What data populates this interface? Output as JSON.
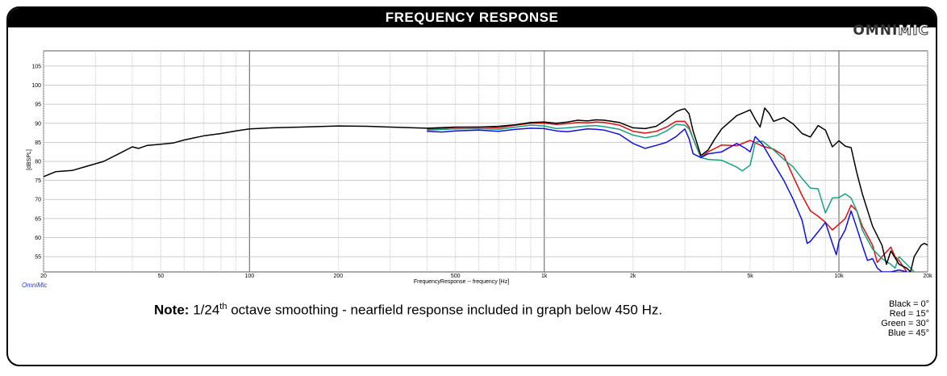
{
  "header": {
    "title": "FREQUENCY RESPONSE",
    "logo_part1": "OMNI",
    "logo_part2": "MIC"
  },
  "brand_text": "OmniMic",
  "note": {
    "bold": "Note:",
    "pre": "1/24",
    "sup": "th",
    "post": " octave smoothing - nearfield response included in graph below 450 Hz."
  },
  "legend": [
    "Black = 0°",
    "Red = 15°",
    "Green = 30°",
    "Blue = 45°"
  ],
  "chart_data": {
    "type": "line",
    "xscale": "log",
    "xlim": [
      20,
      20000
    ],
    "ylim": [
      51,
      109
    ],
    "ylabel": "[dBSPL]",
    "xlabel": "FrequencyResponse -- frequency [Hz]",
    "x_ticks": [
      {
        "v": 20,
        "label": "20"
      },
      {
        "v": 50,
        "label": "50"
      },
      {
        "v": 100,
        "label": "100"
      },
      {
        "v": 200,
        "label": "200"
      },
      {
        "v": 500,
        "label": "500"
      },
      {
        "v": 1000,
        "label": "1k"
      },
      {
        "v": 2000,
        "label": "2k"
      },
      {
        "v": 5000,
        "label": "5k"
      },
      {
        "v": 10000,
        "label": "10k"
      },
      {
        "v": 20000,
        "label": "20k"
      }
    ],
    "y_ticks": [
      55,
      60,
      65,
      70,
      75,
      80,
      85,
      90,
      95,
      100,
      105
    ],
    "grid": true,
    "series": [
      {
        "color": "#000000",
        "points": [
          [
            20,
            76
          ],
          [
            22,
            77.3
          ],
          [
            25,
            77.6
          ],
          [
            28,
            78.7
          ],
          [
            32,
            80
          ],
          [
            36,
            82
          ],
          [
            40,
            83.8
          ],
          [
            42,
            83.4
          ],
          [
            45,
            84.2
          ],
          [
            50,
            84.5
          ],
          [
            55,
            84.8
          ],
          [
            60,
            85.6
          ],
          [
            70,
            86.7
          ],
          [
            80,
            87.3
          ],
          [
            90,
            88
          ],
          [
            100,
            88.5
          ],
          [
            120,
            88.8
          ],
          [
            150,
            89
          ],
          [
            200,
            89.3
          ],
          [
            250,
            89.2
          ],
          [
            300,
            89
          ],
          [
            400,
            88.7
          ],
          [
            500,
            89
          ],
          [
            600,
            89
          ],
          [
            700,
            89.2
          ],
          [
            800,
            89.6
          ],
          [
            900,
            90.2
          ],
          [
            1000,
            90.3
          ],
          [
            1100,
            90
          ],
          [
            1200,
            90.3
          ],
          [
            1300,
            90.8
          ],
          [
            1400,
            90.6
          ],
          [
            1500,
            90.9
          ],
          [
            1600,
            90.8
          ],
          [
            1800,
            90.2
          ],
          [
            2000,
            88.8
          ],
          [
            2200,
            88.6
          ],
          [
            2400,
            89.2
          ],
          [
            2600,
            91
          ],
          [
            2800,
            93
          ],
          [
            2900,
            93.5
          ],
          [
            3000,
            93.8
          ],
          [
            3100,
            92.5
          ],
          [
            3200,
            88
          ],
          [
            3400,
            81.5
          ],
          [
            3600,
            83
          ],
          [
            3800,
            86
          ],
          [
            4000,
            88.5
          ],
          [
            4500,
            92
          ],
          [
            5000,
            93.5
          ],
          [
            5200,
            91
          ],
          [
            5400,
            89
          ],
          [
            5600,
            94
          ],
          [
            5800,
            92.6
          ],
          [
            6000,
            90.5
          ],
          [
            6500,
            91.5
          ],
          [
            7000,
            89.8
          ],
          [
            7500,
            87.3
          ],
          [
            8000,
            86.4
          ],
          [
            8500,
            89.4
          ],
          [
            9000,
            88.2
          ],
          [
            9500,
            83.8
          ],
          [
            10000,
            85.4
          ],
          [
            10500,
            84
          ],
          [
            11000,
            83.6
          ],
          [
            11500,
            77
          ],
          [
            12000,
            71.5
          ],
          [
            13000,
            63
          ],
          [
            14000,
            58
          ],
          [
            14500,
            53
          ],
          [
            15000,
            56.5
          ],
          [
            16000,
            53
          ],
          [
            17000,
            52
          ],
          [
            17500,
            51
          ],
          [
            18000,
            55
          ],
          [
            19000,
            58
          ],
          [
            19500,
            58.5
          ],
          [
            20000,
            58
          ]
        ]
      },
      {
        "color": "#e01010",
        "points": [
          [
            400,
            88.4
          ],
          [
            500,
            88.9
          ],
          [
            600,
            89
          ],
          [
            700,
            88.8
          ],
          [
            800,
            89.5
          ],
          [
            900,
            90
          ],
          [
            1000,
            90
          ],
          [
            1100,
            89.7
          ],
          [
            1200,
            89.9
          ],
          [
            1300,
            90.2
          ],
          [
            1400,
            90.1
          ],
          [
            1500,
            90.3
          ],
          [
            1600,
            90.2
          ],
          [
            1800,
            89.5
          ],
          [
            2000,
            87.9
          ],
          [
            2200,
            87.4
          ],
          [
            2400,
            87.9
          ],
          [
            2600,
            89
          ],
          [
            2800,
            90.5
          ],
          [
            3000,
            90.5
          ],
          [
            3100,
            89
          ],
          [
            3200,
            86
          ],
          [
            3400,
            81
          ],
          [
            3600,
            82.5
          ],
          [
            4000,
            84.3
          ],
          [
            4500,
            84.1
          ],
          [
            5000,
            85.5
          ],
          [
            5500,
            84
          ],
          [
            6000,
            83.2
          ],
          [
            6500,
            81.5
          ],
          [
            7000,
            76
          ],
          [
            7500,
            71
          ],
          [
            8000,
            67
          ],
          [
            8500,
            65.6
          ],
          [
            9000,
            64
          ],
          [
            9500,
            62
          ],
          [
            10000,
            63.5
          ],
          [
            10500,
            65
          ],
          [
            11000,
            68.5
          ],
          [
            11500,
            67
          ],
          [
            12000,
            63
          ],
          [
            13000,
            58
          ],
          [
            13500,
            53.5
          ],
          [
            14000,
            55
          ],
          [
            15000,
            57.5
          ],
          [
            15500,
            55
          ],
          [
            16000,
            54
          ],
          [
            17000,
            51
          ]
        ]
      },
      {
        "color": "#1aa080",
        "points": [
          [
            400,
            88.2
          ],
          [
            500,
            88.5
          ],
          [
            600,
            88.6
          ],
          [
            700,
            88.4
          ],
          [
            800,
            89
          ],
          [
            900,
            89.5
          ],
          [
            1000,
            89.3
          ],
          [
            1100,
            88.6
          ],
          [
            1200,
            88.8
          ],
          [
            1400,
            89.3
          ],
          [
            1500,
            89.4
          ],
          [
            1600,
            89.1
          ],
          [
            1800,
            88.4
          ],
          [
            2000,
            86.9
          ],
          [
            2200,
            86.2
          ],
          [
            2400,
            86.7
          ],
          [
            2600,
            88
          ],
          [
            2800,
            89.7
          ],
          [
            3000,
            89.5
          ],
          [
            3100,
            88.5
          ],
          [
            3200,
            86
          ],
          [
            3400,
            81
          ],
          [
            3600,
            80.5
          ],
          [
            4000,
            80.3
          ],
          [
            4500,
            78.5
          ],
          [
            4700,
            77.5
          ],
          [
            5000,
            79
          ],
          [
            5200,
            85
          ],
          [
            5500,
            85.3
          ],
          [
            6000,
            83
          ],
          [
            6500,
            80.5
          ],
          [
            7000,
            78.5
          ],
          [
            7500,
            75.5
          ],
          [
            8000,
            73
          ],
          [
            8500,
            72.8
          ],
          [
            9000,
            66.5
          ],
          [
            9500,
            70.4
          ],
          [
            10000,
            70.5
          ],
          [
            10500,
            71.5
          ],
          [
            11000,
            70.4
          ],
          [
            11500,
            67
          ],
          [
            12000,
            62
          ],
          [
            13000,
            57
          ],
          [
            14000,
            54.5
          ],
          [
            15000,
            53
          ],
          [
            15500,
            52
          ],
          [
            16000,
            55
          ],
          [
            17000,
            53
          ],
          [
            18000,
            51
          ]
        ]
      },
      {
        "color": "#1010e0",
        "points": [
          [
            400,
            87.9
          ],
          [
            450,
            87.7
          ],
          [
            500,
            88
          ],
          [
            600,
            88.2
          ],
          [
            700,
            87.9
          ],
          [
            800,
            88.4
          ],
          [
            900,
            88.7
          ],
          [
            1000,
            88.6
          ],
          [
            1100,
            88
          ],
          [
            1200,
            87.8
          ],
          [
            1400,
            88.5
          ],
          [
            1500,
            88.4
          ],
          [
            1600,
            88.2
          ],
          [
            1800,
            87.1
          ],
          [
            2000,
            84.7
          ],
          [
            2200,
            83.4
          ],
          [
            2400,
            84.2
          ],
          [
            2600,
            85
          ],
          [
            2800,
            86.5
          ],
          [
            3000,
            88.5
          ],
          [
            3100,
            86
          ],
          [
            3200,
            82
          ],
          [
            3400,
            81
          ],
          [
            3600,
            82
          ],
          [
            4000,
            82.5
          ],
          [
            4500,
            84.7
          ],
          [
            4800,
            83.5
          ],
          [
            5000,
            82.5
          ],
          [
            5200,
            86.5
          ],
          [
            5500,
            84.5
          ],
          [
            6000,
            79.5
          ],
          [
            6500,
            75
          ],
          [
            7000,
            70
          ],
          [
            7500,
            64.5
          ],
          [
            7800,
            58.5
          ],
          [
            8000,
            59
          ],
          [
            8500,
            61.5
          ],
          [
            9000,
            64
          ],
          [
            9500,
            58.5
          ],
          [
            9800,
            55.5
          ],
          [
            10000,
            59
          ],
          [
            10500,
            62
          ],
          [
            11000,
            67
          ],
          [
            11500,
            62.5
          ],
          [
            12000,
            58
          ],
          [
            12500,
            54
          ],
          [
            13000,
            54.5
          ],
          [
            13500,
            52
          ],
          [
            14000,
            51
          ],
          [
            15000,
            51
          ],
          [
            16000,
            51.5
          ],
          [
            17000,
            51
          ]
        ]
      }
    ]
  }
}
